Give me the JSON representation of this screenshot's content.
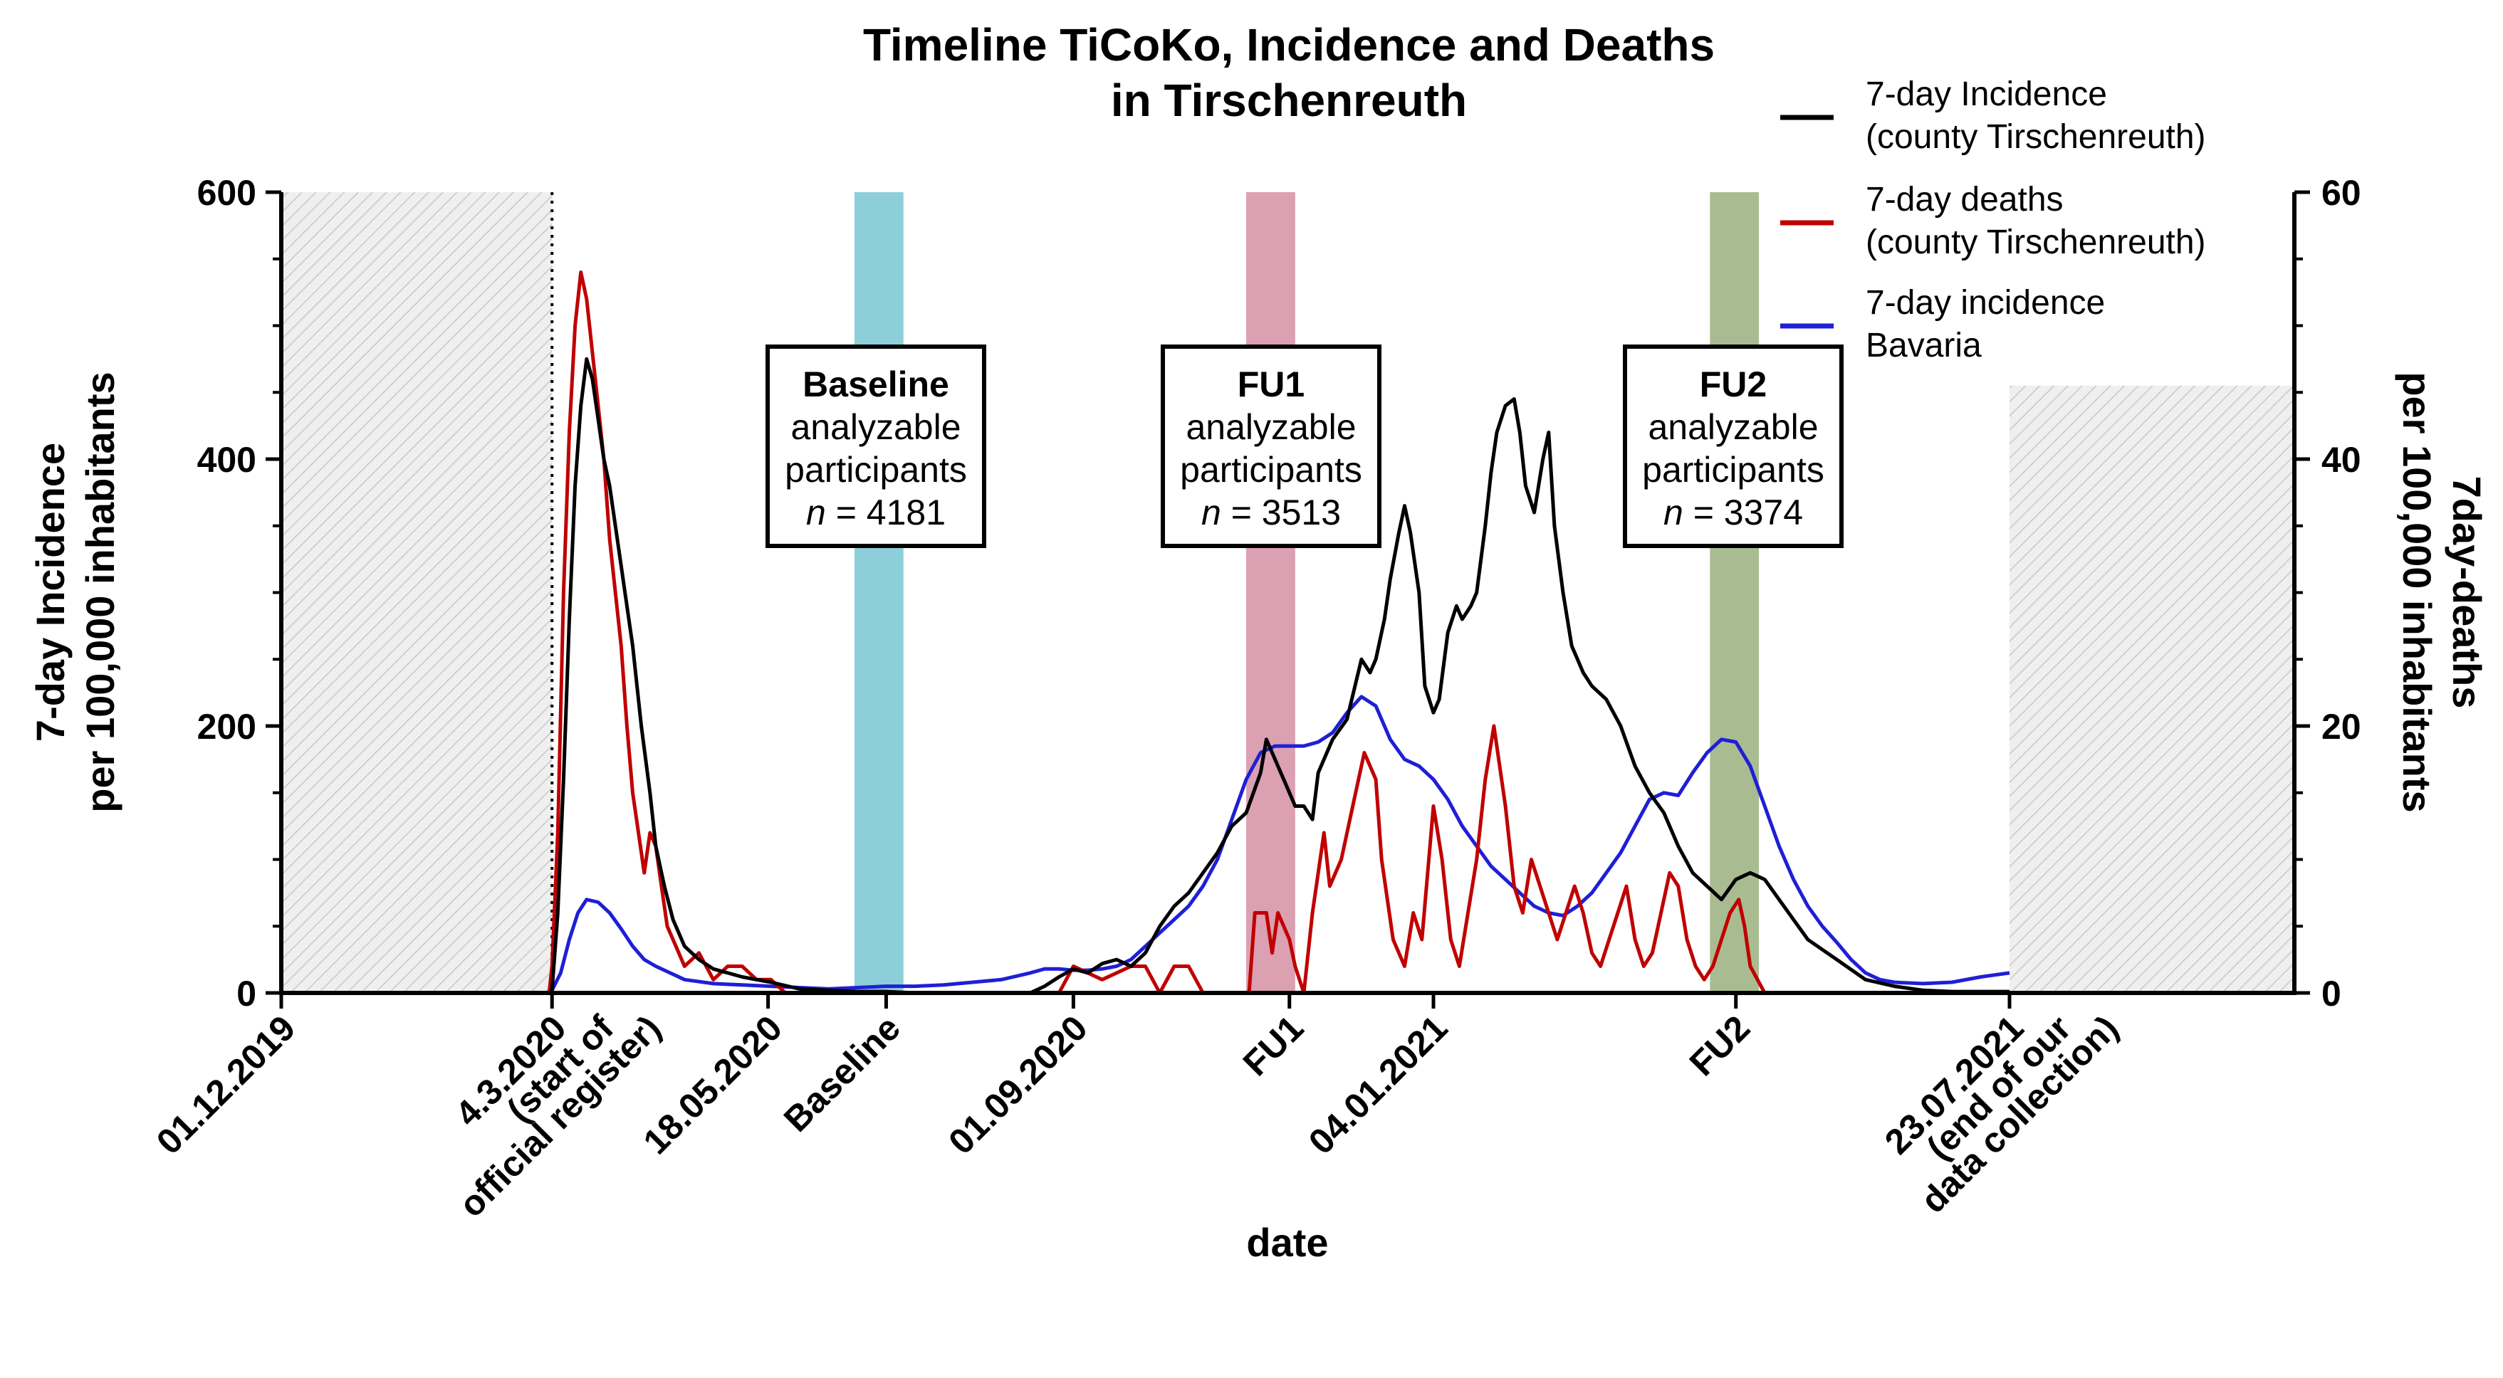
{
  "chart_data": {
    "type": "line",
    "title": [
      "Timeline TiCoKo, Incidence and Deaths",
      "in Tirschenreuth"
    ],
    "xlabel": "date",
    "ylabel_left": [
      "7-day Incidence",
      "per 100,000 inhabitants"
    ],
    "ylabel_right": [
      "7day-deaths",
      "per 100,000 inhabitants"
    ],
    "ylim_left": [
      0,
      600
    ],
    "ylim_right": [
      0,
      60
    ],
    "yticks_left": [
      0,
      200,
      400,
      600
    ],
    "yticks_right": [
      0,
      20,
      40,
      60
    ],
    "x_range_days": [
      0,
      600
    ],
    "x_ticks": [
      {
        "day": 0,
        "lines": [
          "01.12.2019"
        ]
      },
      {
        "day": 94,
        "lines": [
          "4.3.2020",
          "(start of",
          "official register)"
        ]
      },
      {
        "day": 169,
        "lines": [
          "18.05.2020"
        ]
      },
      {
        "day": 210,
        "lines": [
          "Baseline"
        ]
      },
      {
        "day": 275,
        "lines": [
          "01.09.2020"
        ]
      },
      {
        "day": 350,
        "lines": [
          "FU1"
        ]
      },
      {
        "day": 400,
        "lines": [
          "04.01.2021"
        ]
      },
      {
        "day": 505,
        "lines": [
          "FU2"
        ]
      },
      {
        "day": 600,
        "lines": [
          "23.07.2021",
          "(end of  our",
          "data collection)"
        ]
      }
    ],
    "shaded_regions": [
      {
        "name": "before-register",
        "x0": 0,
        "x1": 94,
        "y0": 0,
        "y1": 600,
        "pattern": "hatch"
      },
      {
        "name": "after-collection",
        "x0": 600,
        "x1": 700,
        "y0": 0,
        "y1": 455,
        "pattern": "hatch"
      },
      {
        "name": "baseline-band",
        "x0": 199,
        "x1": 216,
        "color": "#8ccfda"
      },
      {
        "name": "fu1-band",
        "x0": 335,
        "x1": 352,
        "color": "#dba0b2"
      },
      {
        "name": "fu2-band",
        "x0": 496,
        "x1": 513,
        "color": "#a9bc91"
      }
    ],
    "annotations": [
      {
        "name": "baseline",
        "title": "Baseline",
        "line2": "analyzable",
        "line3": "participants",
        "n_label": "n",
        "n_value": "= 4181"
      },
      {
        "name": "fu1",
        "title": "FU1",
        "line2": "analyzable",
        "line3": "participants",
        "n_label": "n",
        "n_value": "= 3513"
      },
      {
        "name": "fu2",
        "title": "FU2",
        "line2": "analyzable",
        "line3": "participants",
        "n_label": "n",
        "n_value": "= 3374"
      }
    ],
    "legend_position": "top-right",
    "series": [
      {
        "name": "7-day Incidence (county Tirschenreuth)",
        "legend": [
          "7-day Incidence",
          "(county Tirschenreuth)"
        ],
        "color": "#000000",
        "axis": "left",
        "x": [
          0,
          93,
          94,
          96,
          98,
          100,
          102,
          104,
          106,
          108,
          110,
          112,
          114,
          116,
          118,
          120,
          122,
          125,
          128,
          130,
          133,
          136,
          140,
          145,
          150,
          155,
          160,
          170,
          180,
          190,
          200,
          210,
          220,
          240,
          260,
          265,
          270,
          275,
          280,
          285,
          290,
          295,
          300,
          305,
          310,
          315,
          320,
          325,
          330,
          335,
          340,
          342,
          344,
          346,
          348,
          350,
          352,
          355,
          358,
          360,
          365,
          370,
          375,
          378,
          380,
          383,
          385,
          388,
          390,
          392,
          395,
          397,
          400,
          402,
          405,
          408,
          410,
          413,
          415,
          418,
          420,
          422,
          425,
          428,
          430,
          432,
          435,
          438,
          440,
          442,
          445,
          448,
          450,
          452,
          455,
          460,
          465,
          470,
          475,
          480,
          485,
          490,
          495,
          500,
          505,
          510,
          515,
          520,
          525,
          530,
          540,
          550,
          560,
          570,
          580,
          590,
          600
        ],
        "y": [
          0,
          0,
          2,
          60,
          160,
          280,
          380,
          440,
          475,
          460,
          430,
          400,
          380,
          350,
          320,
          290,
          260,
          200,
          150,
          110,
          80,
          55,
          35,
          25,
          18,
          15,
          12,
          8,
          3,
          2,
          1,
          1,
          0,
          0,
          0,
          5,
          12,
          18,
          15,
          22,
          25,
          20,
          30,
          50,
          65,
          75,
          90,
          105,
          125,
          135,
          165,
          190,
          180,
          170,
          160,
          150,
          140,
          140,
          130,
          165,
          190,
          205,
          250,
          240,
          250,
          280,
          310,
          345,
          365,
          345,
          300,
          230,
          210,
          220,
          270,
          290,
          280,
          290,
          300,
          350,
          390,
          420,
          440,
          445,
          420,
          380,
          360,
          400,
          420,
          350,
          300,
          260,
          250,
          240,
          230,
          220,
          200,
          170,
          150,
          135,
          110,
          90,
          80,
          70,
          85,
          90,
          85,
          70,
          55,
          40,
          25,
          10,
          5,
          2,
          1,
          1,
          1
        ]
      },
      {
        "name": "7-day deaths (county Tirschenreuth)",
        "legend": [
          "7-day deaths",
          "(county Tirschenreuth)"
        ],
        "color": "#c00000",
        "axis": "right",
        "x": [
          0,
          93,
          94,
          96,
          98,
          100,
          102,
          104,
          106,
          108,
          110,
          112,
          114,
          116,
          118,
          120,
          122,
          124,
          126,
          128,
          130,
          132,
          134,
          136,
          138,
          140,
          145,
          150,
          155,
          160,
          165,
          170,
          175,
          180,
          200,
          270,
          275,
          285,
          295,
          300,
          305,
          310,
          315,
          320,
          330,
          336,
          338,
          342,
          344,
          346,
          350,
          352,
          355,
          358,
          362,
          364,
          368,
          372,
          376,
          380,
          382,
          386,
          390,
          393,
          396,
          400,
          403,
          406,
          409,
          412,
          415,
          418,
          421,
          425,
          428,
          431,
          434,
          437,
          440,
          443,
          446,
          449,
          452,
          455,
          458,
          461,
          464,
          467,
          470,
          473,
          476,
          479,
          482,
          485,
          488,
          491,
          494,
          497,
          500,
          503,
          506,
          508,
          510,
          515,
          520,
          540,
          560,
          580,
          600
        ],
        "y": [
          0,
          0,
          2,
          12,
          30,
          42,
          50,
          54,
          52,
          48,
          44,
          40,
          34,
          30,
          26,
          20,
          15,
          12,
          9,
          12,
          11,
          8,
          5,
          4,
          3,
          2,
          3,
          1,
          2,
          2,
          1,
          1,
          0,
          0,
          0,
          0,
          2,
          1,
          2,
          2,
          0,
          2,
          2,
          0,
          0,
          0,
          6,
          6,
          3,
          6,
          4,
          2,
          0,
          6,
          12,
          8,
          10,
          14,
          18,
          16,
          10,
          4,
          2,
          6,
          4,
          14,
          10,
          4,
          2,
          6,
          10,
          16,
          20,
          14,
          8,
          6,
          10,
          8,
          6,
          4,
          6,
          8,
          6,
          3,
          2,
          4,
          6,
          8,
          4,
          2,
          3,
          6,
          9,
          8,
          4,
          2,
          1,
          2,
          4,
          6,
          7,
          5,
          2,
          0,
          0,
          0,
          0,
          0,
          0
        ]
      },
      {
        "name": "7-day incidence Bavaria",
        "legend": [
          "7-day incidence",
          "Bavaria"
        ],
        "color": "#1f1fd6",
        "axis": "left",
        "x": [
          0,
          93,
          94,
          97,
          100,
          103,
          106,
          110,
          114,
          118,
          122,
          126,
          130,
          135,
          140,
          150,
          160,
          170,
          180,
          190,
          200,
          210,
          220,
          230,
          240,
          250,
          260,
          265,
          270,
          275,
          280,
          285,
          290,
          295,
          300,
          305,
          310,
          315,
          320,
          325,
          330,
          335,
          340,
          345,
          350,
          355,
          360,
          365,
          370,
          375,
          380,
          385,
          390,
          395,
          400,
          405,
          410,
          415,
          420,
          425,
          430,
          435,
          440,
          445,
          450,
          455,
          460,
          465,
          470,
          475,
          480,
          485,
          490,
          495,
          500,
          505,
          510,
          515,
          520,
          525,
          530,
          535,
          540,
          545,
          550,
          555,
          560,
          570,
          580,
          590,
          600
        ],
        "y": [
          0,
          0,
          2,
          15,
          40,
          60,
          70,
          68,
          60,
          48,
          35,
          25,
          20,
          15,
          10,
          7,
          6,
          5,
          4,
          3,
          4,
          5,
          5,
          6,
          8,
          10,
          15,
          18,
          18,
          17,
          17,
          18,
          20,
          25,
          35,
          45,
          55,
          65,
          80,
          100,
          130,
          160,
          180,
          185,
          185,
          185,
          188,
          195,
          210,
          222,
          215,
          190,
          175,
          170,
          160,
          145,
          125,
          110,
          95,
          85,
          75,
          65,
          60,
          58,
          65,
          75,
          90,
          105,
          125,
          145,
          150,
          148,
          165,
          180,
          190,
          188,
          170,
          140,
          110,
          85,
          65,
          50,
          38,
          25,
          15,
          10,
          8,
          7,
          8,
          12,
          15
        ]
      }
    ]
  }
}
